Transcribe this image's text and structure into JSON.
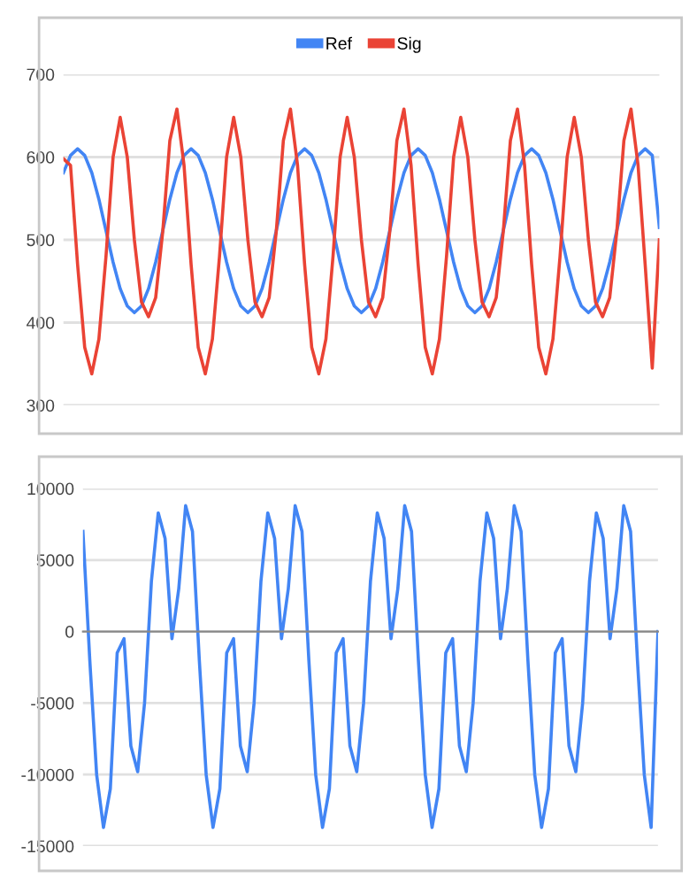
{
  "chart_data": [
    {
      "type": "line",
      "categories": [
        null,
        null,
        null,
        null,
        null,
        null,
        null,
        null,
        null,
        null,
        null,
        null,
        null,
        null,
        null,
        null,
        null,
        null,
        null,
        null,
        null,
        null,
        null,
        null,
        null,
        null,
        null,
        null,
        null,
        null,
        null,
        null,
        null,
        null,
        null,
        null,
        null,
        null,
        null,
        null,
        null,
        null,
        null,
        null,
        null,
        null,
        null,
        null,
        null,
        null,
        null,
        null,
        null,
        null,
        null,
        null,
        null,
        null,
        null,
        null,
        null,
        null,
        null,
        null,
        null,
        null,
        null,
        null,
        null,
        null,
        null,
        null,
        null,
        null,
        null,
        null,
        null,
        null,
        null,
        null,
        null,
        null,
        null,
        null,
        null
      ],
      "series": [
        {
          "name": "Ref",
          "color": "#4285f4",
          "values": [
            581,
            602,
            610,
            602,
            581,
            549,
            511,
            473,
            441,
            420,
            412,
            420,
            441,
            473,
            511,
            549,
            581,
            602,
            610,
            602,
            581,
            549,
            511,
            473,
            441,
            420,
            412,
            420,
            441,
            473,
            511,
            549,
            581,
            602,
            610,
            602,
            581,
            549,
            511,
            473,
            441,
            420,
            412,
            420,
            441,
            473,
            511,
            549,
            581,
            602,
            610,
            602,
            581,
            549,
            511,
            473,
            441,
            420,
            412,
            420,
            441,
            473,
            511,
            549,
            581,
            602,
            610,
            602,
            581,
            549,
            511,
            473,
            441,
            420,
            412,
            420,
            441,
            473,
            511,
            549,
            581,
            602,
            610,
            602,
            515
          ]
        },
        {
          "name": "Sig",
          "color": "#ea4335",
          "values": [
            598,
            590,
            470,
            370,
            338,
            380,
            480,
            600,
            648,
            600,
            500,
            425,
            407,
            430,
            510,
            620,
            658,
            590,
            470,
            370,
            338,
            380,
            480,
            600,
            648,
            600,
            500,
            425,
            407,
            430,
            510,
            620,
            658,
            590,
            470,
            370,
            338,
            380,
            480,
            600,
            648,
            600,
            500,
            425,
            407,
            430,
            510,
            620,
            658,
            590,
            470,
            370,
            338,
            380,
            480,
            600,
            648,
            600,
            500,
            425,
            407,
            430,
            510,
            620,
            658,
            590,
            470,
            370,
            338,
            380,
            480,
            600,
            648,
            600,
            500,
            425,
            407,
            430,
            510,
            620,
            658,
            590,
            470,
            345,
            500
          ]
        }
      ],
      "ylim": [
        300,
        700
      ],
      "yticks": [
        300,
        400,
        500,
        600,
        700
      ],
      "grid": "y",
      "legend": "top",
      "tick_labels": "y",
      "marker": "none",
      "line_style": "solid"
    },
    {
      "type": "line",
      "categories": [
        null,
        null,
        null,
        null,
        null,
        null,
        null,
        null,
        null,
        null,
        null,
        null,
        null,
        null,
        null,
        null,
        null,
        null,
        null,
        null,
        null,
        null,
        null,
        null,
        null,
        null,
        null,
        null,
        null,
        null,
        null,
        null,
        null,
        null,
        null,
        null,
        null,
        null,
        null,
        null,
        null,
        null,
        null,
        null,
        null,
        null,
        null,
        null,
        null,
        null,
        null,
        null,
        null,
        null,
        null,
        null,
        null,
        null,
        null,
        null,
        null,
        null,
        null,
        null,
        null,
        null,
        null,
        null,
        null,
        null,
        null,
        null,
        null,
        null,
        null,
        null,
        null,
        null,
        null,
        null,
        null,
        null,
        null,
        null,
        null
      ],
      "series": [
        {
          "color": "#4285f4",
          "values": [
            7000,
            -2000,
            -10000,
            -13700,
            -11000,
            -1500,
            -500,
            -8000,
            -9800,
            -5000,
            3500,
            8300,
            6500,
            -500,
            3000,
            8800,
            7000,
            -2000,
            -10000,
            -13700,
            -11000,
            -1500,
            -500,
            -8000,
            -9800,
            -5000,
            3500,
            8300,
            6500,
            -500,
            3000,
            8800,
            7000,
            -2000,
            -10000,
            -13700,
            -11000,
            -1500,
            -500,
            -8000,
            -9800,
            -5000,
            3500,
            8300,
            6500,
            -500,
            3000,
            8800,
            7000,
            -2000,
            -10000,
            -13700,
            -11000,
            -1500,
            -500,
            -8000,
            -9800,
            -5000,
            3500,
            8300,
            6500,
            -500,
            3000,
            8800,
            7000,
            -2000,
            -10000,
            -13700,
            -11000,
            -1500,
            -500,
            -8000,
            -9800,
            -5000,
            3500,
            8300,
            6500,
            -500,
            3000,
            8800,
            7000,
            -2000,
            -10000,
            -13700,
            0
          ]
        }
      ],
      "ylim": [
        -15000,
        10000
      ],
      "yticks": [
        -15000,
        -10000,
        -5000,
        0,
        5000,
        10000
      ],
      "grid": "y",
      "legend": false,
      "tick_labels": "y",
      "marker": "none",
      "line_style": "solid"
    }
  ]
}
